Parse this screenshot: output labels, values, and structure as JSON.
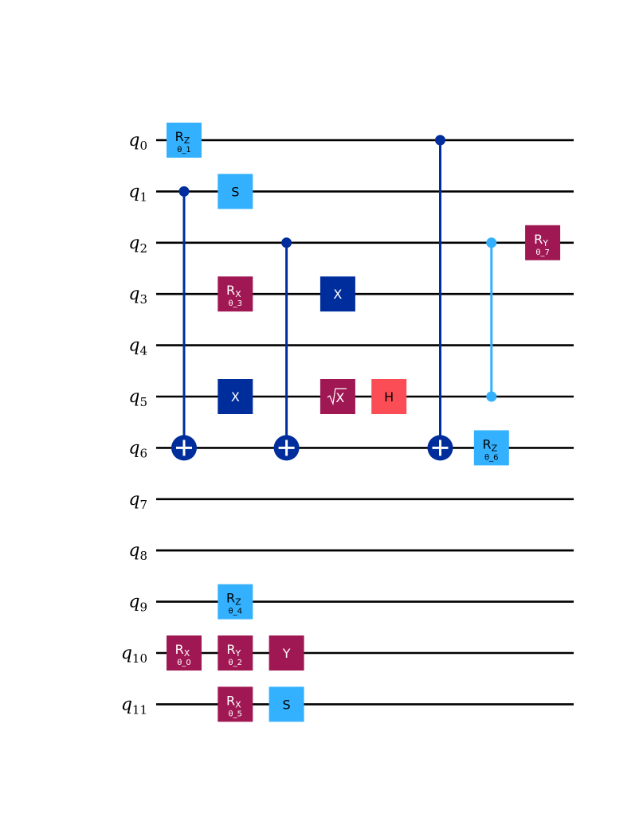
{
  "colors": {
    "wire": "#000000",
    "cnot": "#002d9c",
    "light_blue": "#33b1ff",
    "magenta": "#9f1853",
    "red": "#fa4d56",
    "white": "#ffffff"
  },
  "qubits": [
    {
      "name": "q",
      "index": "0"
    },
    {
      "name": "q",
      "index": "1"
    },
    {
      "name": "q",
      "index": "2"
    },
    {
      "name": "q",
      "index": "3"
    },
    {
      "name": "q",
      "index": "4"
    },
    {
      "name": "q",
      "index": "5"
    },
    {
      "name": "q",
      "index": "6"
    },
    {
      "name": "q",
      "index": "7"
    },
    {
      "name": "q",
      "index": "8"
    },
    {
      "name": "q",
      "index": "9"
    },
    {
      "name": "q",
      "index": "10"
    },
    {
      "name": "q",
      "index": "11"
    }
  ],
  "gates": [
    {
      "kind": "box",
      "label": "R",
      "sub": "Z",
      "param": "θ_1",
      "qubit": 0,
      "column": 0,
      "color": "light_blue",
      "text_color": "dark"
    },
    {
      "kind": "box",
      "label": "R",
      "sub": "X",
      "param": "θ_0",
      "qubit": 10,
      "column": 0,
      "color": "magenta",
      "text_color": "white"
    },
    {
      "kind": "box",
      "label": "S",
      "sub": "",
      "param": "",
      "qubit": 1,
      "column": 1,
      "color": "light_blue",
      "text_color": "dark"
    },
    {
      "kind": "box",
      "label": "R",
      "sub": "X",
      "param": "θ_3",
      "qubit": 3,
      "column": 1,
      "color": "magenta",
      "text_color": "white"
    },
    {
      "kind": "box",
      "label": "X",
      "sub": "",
      "param": "",
      "qubit": 5,
      "column": 1,
      "color": "cnot",
      "text_color": "white"
    },
    {
      "kind": "box",
      "label": "R",
      "sub": "Z",
      "param": "θ_4",
      "qubit": 9,
      "column": 1,
      "color": "light_blue",
      "text_color": "dark"
    },
    {
      "kind": "box",
      "label": "R",
      "sub": "Y",
      "param": "θ_2",
      "qubit": 10,
      "column": 1,
      "color": "magenta",
      "text_color": "white"
    },
    {
      "kind": "box",
      "label": "R",
      "sub": "X",
      "param": "θ_5",
      "qubit": 11,
      "column": 1,
      "color": "magenta",
      "text_color": "white"
    },
    {
      "kind": "box",
      "label": "Y",
      "sub": "",
      "param": "",
      "qubit": 10,
      "column": 2,
      "color": "magenta",
      "text_color": "white"
    },
    {
      "kind": "box",
      "label": "S",
      "sub": "",
      "param": "",
      "qubit": 11,
      "column": 2,
      "color": "light_blue",
      "text_color": "dark"
    },
    {
      "kind": "box",
      "label": "X",
      "sub": "",
      "param": "",
      "qubit": 3,
      "column": 3,
      "color": "cnot",
      "text_color": "white"
    },
    {
      "kind": "sqrtx",
      "label": "X",
      "sub": "",
      "param": "",
      "qubit": 5,
      "column": 3,
      "color": "magenta",
      "text_color": "white"
    },
    {
      "kind": "box",
      "label": "H",
      "sub": "",
      "param": "",
      "qubit": 5,
      "column": 4,
      "color": "red",
      "text_color": "dark"
    },
    {
      "kind": "box",
      "label": "R",
      "sub": "Z",
      "param": "θ_6",
      "qubit": 6,
      "column": 6,
      "color": "light_blue",
      "text_color": "dark"
    },
    {
      "kind": "box",
      "label": "R",
      "sub": "Y",
      "param": "θ_7",
      "qubit": 2,
      "column": 7,
      "color": "magenta",
      "text_color": "white"
    }
  ],
  "controlled": [
    {
      "kind": "cnot",
      "control": 1,
      "target": 6,
      "column": 0,
      "color": "cnot"
    },
    {
      "kind": "cnot",
      "control": 2,
      "target": 6,
      "column": 2,
      "color": "cnot"
    },
    {
      "kind": "cnot",
      "control": 0,
      "target": 6,
      "column": 5,
      "color": "cnot"
    },
    {
      "kind": "cz",
      "control": 2,
      "target": 5,
      "column": 6,
      "color": "light_blue"
    }
  ]
}
